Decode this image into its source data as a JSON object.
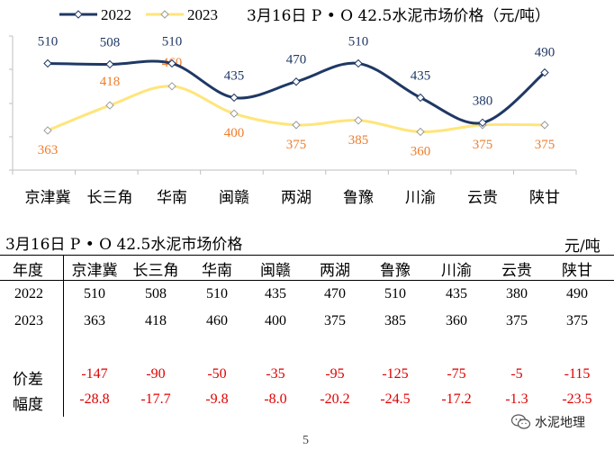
{
  "chart_data": {
    "type": "line",
    "title": "3月16日 P • O 42.5水泥市场价格（元/吨）",
    "categories": [
      "京津冀",
      "长三角",
      "华南",
      "闽赣",
      "两湖",
      "鲁豫",
      "川渝",
      "云贵",
      "陕甘"
    ],
    "series": [
      {
        "name": "2022",
        "values": [
          510,
          508,
          510,
          435,
          470,
          510,
          435,
          380,
          490
        ],
        "color": "#1f3864",
        "label_color": "#1f3864"
      },
      {
        "name": "2023",
        "values": [
          363,
          418,
          460,
          400,
          375,
          385,
          360,
          375,
          375
        ],
        "color": "#ffe57a",
        "label_color": "#ee7d2b"
      }
    ],
    "ylim": [
      280,
      580
    ],
    "legend": "top-left"
  },
  "table": {
    "title": "3月16日 P • O 42.5水泥市场价格",
    "unit": "元/吨",
    "header_label": "年度",
    "rows": [
      {
        "label": "2022",
        "values": [
          "510",
          "508",
          "510",
          "435",
          "470",
          "510",
          "435",
          "380",
          "490"
        ]
      },
      {
        "label": "2023",
        "values": [
          "363",
          "418",
          "460",
          "400",
          "375",
          "385",
          "360",
          "375",
          "375"
        ]
      }
    ],
    "diff": {
      "label": "价差",
      "values": [
        "-147",
        "-90",
        "-50",
        "-35",
        "-95",
        "-125",
        "-75",
        "-5",
        "-115"
      ]
    },
    "pct": {
      "label": "幅度",
      "values": [
        "-28.8",
        "-17.7",
        "-9.8",
        "-8.0",
        "-20.2",
        "-24.5",
        "-17.2",
        "-1.3",
        "-23.5"
      ]
    },
    "negative_color": "#e00000"
  },
  "watermark": {
    "text": "水泥地理"
  },
  "page_number": "5"
}
